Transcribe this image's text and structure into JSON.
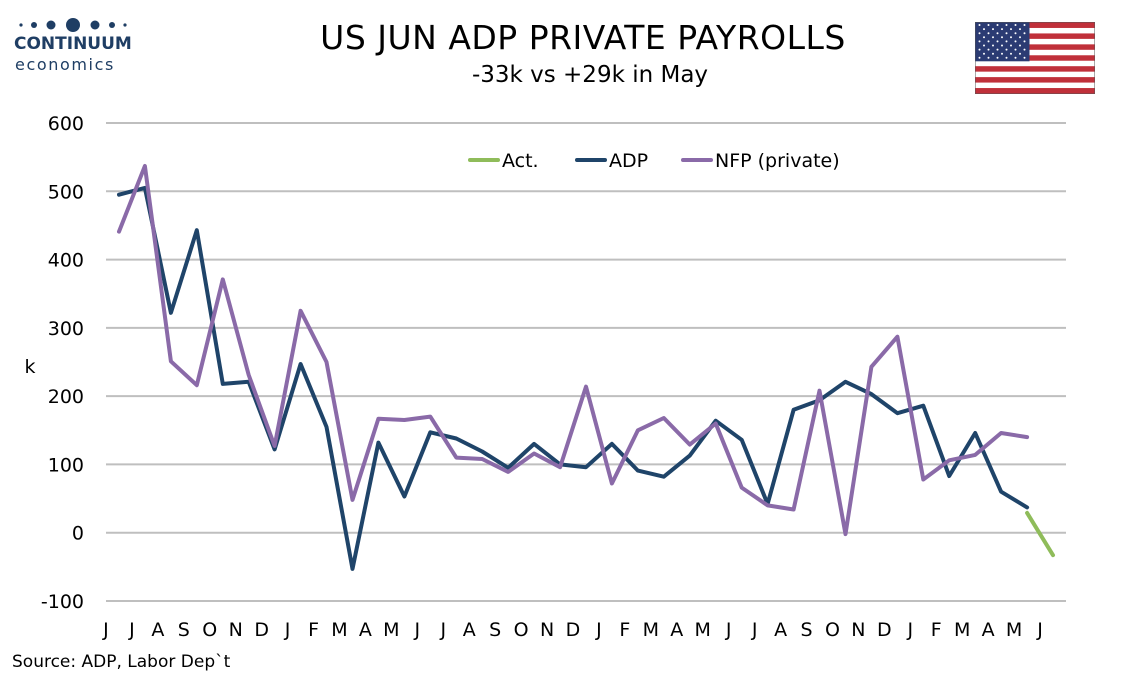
{
  "header": {
    "title": "US JUN ADP PRIVATE PAYROLLS",
    "subtitle": "-33k vs +29k in May"
  },
  "logo": {
    "name": "CONTINUUM",
    "tagline": "economics"
  },
  "flag": {
    "icon": "us-flag-icon"
  },
  "source": "Source: ADP, Labor Dep`t",
  "colors": {
    "act": "#8fbc5a",
    "adp": "#1f4469",
    "nfp": "#8a6aa8",
    "grid": "#bfbfbf"
  },
  "chart_data": {
    "type": "line",
    "title": "US JUN ADP PRIVATE PAYROLLS",
    "subtitle": "-33k vs +29k in May",
    "ylabel": "k",
    "xlabel": "",
    "ylim": [
      -100,
      600
    ],
    "yticks": [
      -100,
      0,
      100,
      200,
      300,
      400,
      500,
      600
    ],
    "grid": true,
    "legend_position": "top-center",
    "categories": [
      "J",
      "J",
      "A",
      "S",
      "O",
      "N",
      "D",
      "J",
      "F",
      "M",
      "A",
      "M",
      "J",
      "J",
      "A",
      "S",
      "O",
      "N",
      "D",
      "J",
      "F",
      "M",
      "A",
      "M",
      "J",
      "J",
      "A",
      "S",
      "O",
      "N",
      "D",
      "J",
      "F",
      "M",
      "A",
      "M",
      "J"
    ],
    "series": [
      {
        "name": "Act.",
        "color": "#8fbc5a",
        "values": [
          null,
          null,
          null,
          null,
          null,
          null,
          null,
          null,
          null,
          null,
          null,
          null,
          null,
          null,
          null,
          null,
          null,
          null,
          null,
          null,
          null,
          null,
          null,
          null,
          null,
          null,
          null,
          null,
          null,
          null,
          null,
          null,
          null,
          null,
          null,
          29,
          -33
        ]
      },
      {
        "name": "ADP",
        "color": "#1f4469",
        "values": [
          495,
          505,
          322,
          443,
          218,
          221,
          122,
          247,
          155,
          -53,
          132,
          53,
          147,
          138,
          119,
          95,
          130,
          100,
          96,
          130,
          91,
          82,
          113,
          164,
          136,
          42,
          180,
          194,
          221,
          203,
          175,
          186,
          83,
          146,
          60,
          37,
          null
        ]
      },
      {
        "name": "NFP (private)",
        "color": "#8a6aa8",
        "values": [
          441,
          537,
          251,
          216,
          371,
          231,
          127,
          325,
          250,
          48,
          167,
          165,
          170,
          110,
          108,
          89,
          116,
          96,
          214,
          72,
          150,
          168,
          129,
          160,
          66,
          40,
          34,
          208,
          -2,
          243,
          287,
          78,
          106,
          114,
          146,
          140,
          null
        ]
      }
    ]
  }
}
